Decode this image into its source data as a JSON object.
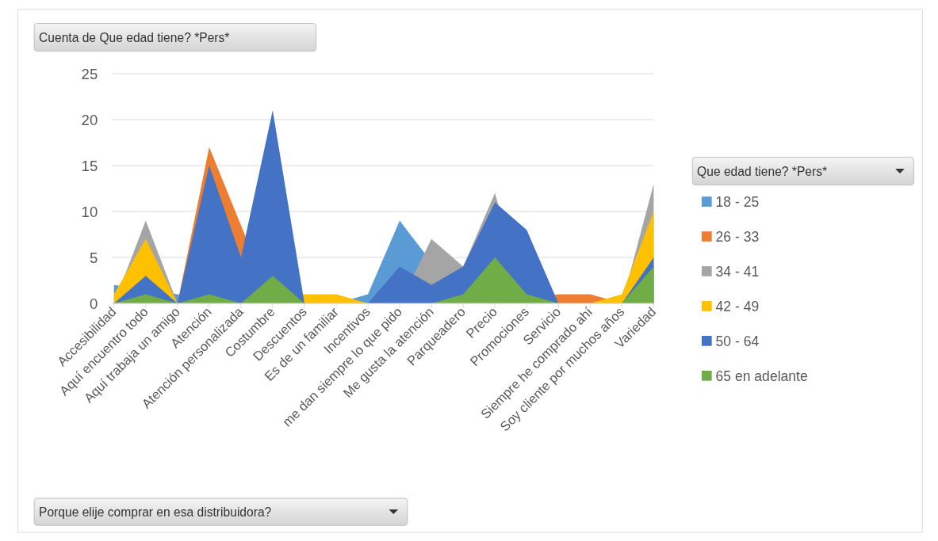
{
  "chart_data": {
    "type": "area",
    "title": "Cuenta de Que edad tiene? *Pers*",
    "annotations": [
      "Porque elije comprar en esa distribuidora?"
    ],
    "legend_title": "Que edad tiene? *Pers*",
    "categories": [
      "Accesibilidad",
      "Aquí encuentro todo",
      "Aquí trabaja un amigo",
      "Atención",
      "Atención personalizada",
      "Costumbre",
      "Descuentos",
      "Es de un familiar",
      "Incentivos",
      "me dan siempre lo que pido",
      "Me gusta la atención",
      "Parqueadero",
      "Precio",
      "Promociones",
      "Servicio",
      "Siempre he comprado ahí",
      "Soy cliente por muchos años",
      "Variedad"
    ],
    "series": [
      {
        "name": "18 - 25",
        "color": "#5b9bd5",
        "values": [
          2,
          null,
          1,
          0,
          0,
          0,
          0,
          0,
          1,
          9,
          null,
          0,
          0,
          0,
          0,
          0,
          0,
          0
        ]
      },
      {
        "name": "26 - 33",
        "color": "#ed7d31",
        "values": [
          0,
          0,
          0,
          17,
          null,
          0,
          0,
          0,
          0,
          0,
          0,
          0,
          0,
          null,
          1,
          1,
          0,
          0
        ]
      },
      {
        "name": "34 - 41",
        "color": "#a5a5a5",
        "values": [
          0,
          9,
          0,
          0,
          0,
          0,
          0,
          0,
          0,
          0,
          7,
          4,
          12,
          0,
          0,
          0,
          0,
          13
        ]
      },
      {
        "name": "42 - 49",
        "color": "#ffc000",
        "values": [
          1,
          7,
          0,
          0,
          0,
          0,
          1,
          1,
          0,
          0,
          0,
          0,
          0,
          0,
          0,
          0,
          1,
          10
        ]
      },
      {
        "name": "50 - 64",
        "color": "#4472c4",
        "values": [
          0,
          3,
          0,
          15,
          5,
          21,
          0,
          0,
          0,
          4,
          2,
          4,
          11,
          8,
          0,
          0,
          0,
          5
        ]
      },
      {
        "name": "65 en adelante",
        "color": "#70ad47",
        "values": [
          0,
          1,
          0,
          1,
          0,
          3,
          0,
          0,
          0,
          0,
          0,
          1,
          5,
          1,
          0,
          0,
          0,
          4
        ]
      }
    ],
    "ylim": [
      0,
      25
    ],
    "yticks": [
      0,
      5,
      10,
      15,
      20,
      25
    ],
    "grid": "y",
    "legend": "right"
  }
}
